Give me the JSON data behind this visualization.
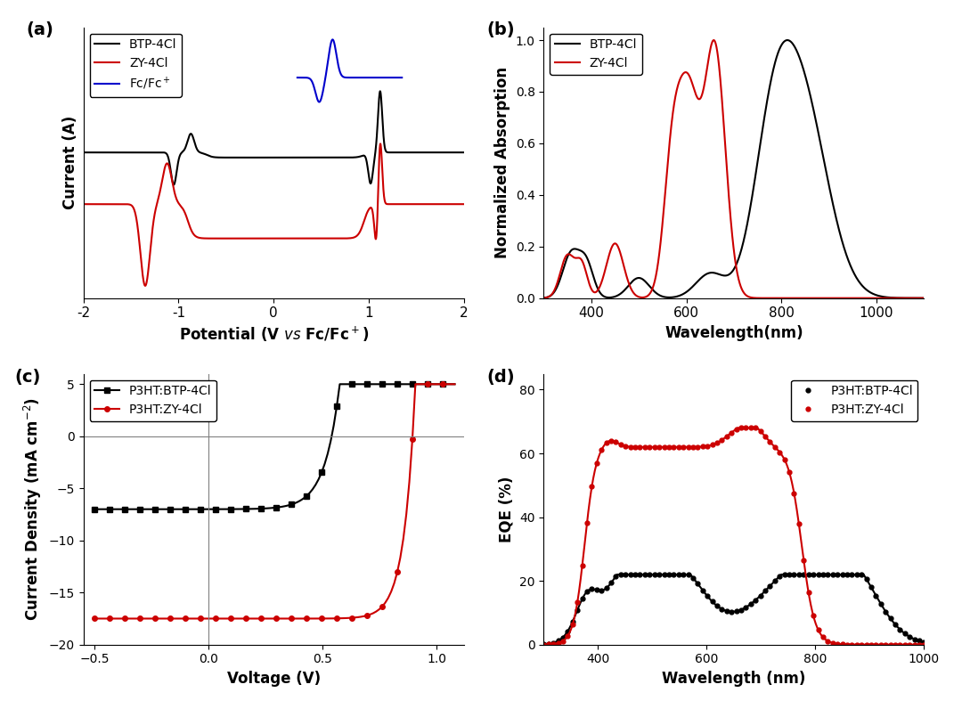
{
  "colors": {
    "black": "#000000",
    "red": "#cc0000",
    "blue": "#0000cc",
    "gray": "#808080"
  },
  "panel_a": {
    "label": "(a)",
    "xlabel": "Potential (V vs Fc/Fc$^+$)",
    "ylabel": "Current (A)",
    "xlim": [
      -2,
      2
    ],
    "xticks": [
      -2,
      -1,
      0,
      1,
      2
    ]
  },
  "panel_b": {
    "label": "(b)",
    "xlabel": "Wavelength(nm)",
    "ylabel": "Normalized Absorption",
    "xlim": [
      300,
      1100
    ],
    "ylim": [
      0.0,
      1.05
    ],
    "xticks": [
      400,
      600,
      800,
      1000
    ],
    "yticks": [
      0.0,
      0.2,
      0.4,
      0.6,
      0.8,
      1.0
    ]
  },
  "panel_c": {
    "label": "(c)",
    "xlabel": "Voltage (V)",
    "ylabel": "Current Density (mA cm$^{-2}$)",
    "xlim": [
      -0.55,
      1.12
    ],
    "ylim": [
      -20,
      6
    ],
    "xticks": [
      -0.5,
      0.0,
      0.5,
      1.0
    ],
    "yticks": [
      -20,
      -15,
      -10,
      -5,
      0,
      5
    ]
  },
  "panel_d": {
    "label": "(d)",
    "xlabel": "Wavelength (nm)",
    "ylabel": "EQE (%)",
    "xlim": [
      300,
      1000
    ],
    "ylim": [
      0,
      85
    ],
    "xticks": [
      400,
      600,
      800,
      1000
    ],
    "yticks": [
      0,
      20,
      40,
      60,
      80
    ]
  }
}
